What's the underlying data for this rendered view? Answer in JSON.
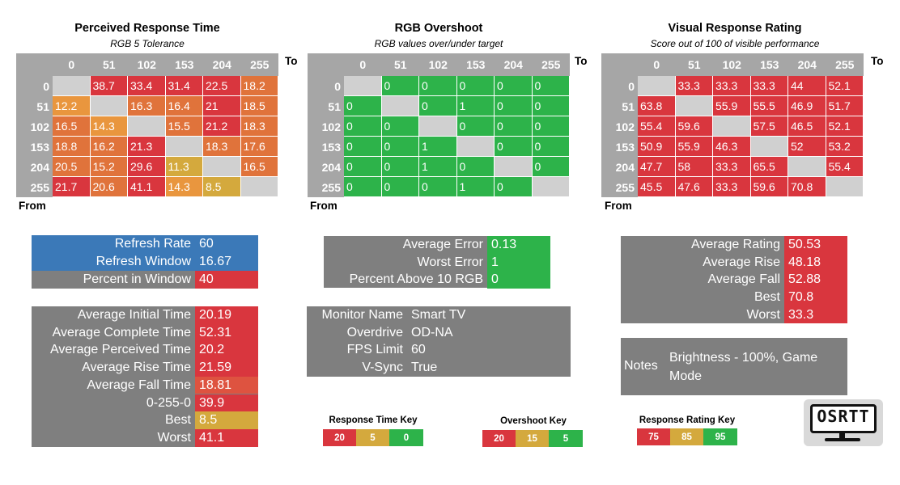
{
  "colors": {
    "red": "#d9363e",
    "orange": "#e0733b",
    "orange2": "#e9963e",
    "amber": "#d4a93d",
    "green": "#2db34a",
    "blue": "#3b79b8",
    "gray": "#7f7f7f",
    "header": "#a6a6a6",
    "diag": "#d0d0d0"
  },
  "chart_data": [
    {
      "type": "heatmap",
      "title": "Perceived Response Time",
      "subtitle": "RGB 5 Tolerance",
      "x_header": "To",
      "y_header": "From",
      "x": [
        "0",
        "51",
        "102",
        "153",
        "204",
        "255"
      ],
      "y": [
        "0",
        "51",
        "102",
        "153",
        "204",
        "255"
      ],
      "values": [
        [
          null,
          38.7,
          33.4,
          31.4,
          22.5,
          18.2
        ],
        [
          12.2,
          null,
          16.3,
          16.4,
          21,
          18.5
        ],
        [
          16.5,
          14.3,
          null,
          15.5,
          21.2,
          18.3
        ],
        [
          18.8,
          16.2,
          21.3,
          null,
          18.3,
          17.6
        ],
        [
          20.5,
          15.2,
          29.6,
          11.3,
          null,
          16.5
        ],
        [
          21.7,
          20.6,
          41.1,
          14.3,
          8.5,
          null
        ]
      ]
    },
    {
      "type": "heatmap",
      "title": "RGB Overshoot",
      "subtitle": "RGB values over/under target",
      "x_header": "To",
      "y_header": "From",
      "x": [
        "0",
        "51",
        "102",
        "153",
        "204",
        "255"
      ],
      "y": [
        "0",
        "51",
        "102",
        "153",
        "204",
        "255"
      ],
      "values": [
        [
          null,
          0,
          0,
          0,
          0,
          0
        ],
        [
          0,
          null,
          0,
          1,
          0,
          0
        ],
        [
          0,
          0,
          null,
          0,
          0,
          0
        ],
        [
          0,
          0,
          1,
          null,
          0,
          0
        ],
        [
          0,
          0,
          1,
          0,
          null,
          0
        ],
        [
          0,
          0,
          0,
          1,
          0,
          null
        ]
      ]
    },
    {
      "type": "heatmap",
      "title": "Visual Response Rating",
      "subtitle": "Score out of 100 of visible performance",
      "x_header": "To",
      "y_header": "From",
      "x": [
        "0",
        "51",
        "102",
        "153",
        "204",
        "255"
      ],
      "y": [
        "0",
        "51",
        "102",
        "153",
        "204",
        "255"
      ],
      "values": [
        [
          null,
          33.3,
          33.3,
          33.3,
          44,
          52.1
        ],
        [
          63.8,
          null,
          55.9,
          55.5,
          46.9,
          51.7
        ],
        [
          55.4,
          59.6,
          null,
          57.5,
          46.5,
          52.1
        ],
        [
          50.9,
          55.9,
          46.3,
          null,
          52,
          53.2
        ],
        [
          47.7,
          58,
          33.3,
          65.5,
          null,
          55.4
        ],
        [
          45.5,
          47.6,
          33.3,
          59.6,
          70.8,
          null
        ]
      ]
    }
  ],
  "refresh": {
    "rows": [
      {
        "label": "Refresh Rate",
        "value": "60"
      },
      {
        "label": "Refresh Window",
        "value": "16.67"
      },
      {
        "label": "Percent in Window",
        "value": "40"
      }
    ]
  },
  "timing": {
    "rows": [
      {
        "label": "Average Initial Time",
        "value": "20.19"
      },
      {
        "label": "Average Complete Time",
        "value": "52.31"
      },
      {
        "label": "Average Perceived Time",
        "value": "20.2"
      },
      {
        "label": "Average Rise Time",
        "value": "21.59"
      },
      {
        "label": "Average Fall Time",
        "value": "18.81"
      },
      {
        "label": "0-255-0",
        "value": "39.9"
      },
      {
        "label": "Best",
        "value": "8.5"
      },
      {
        "label": "Worst",
        "value": "41.1"
      }
    ]
  },
  "errors": {
    "rows": [
      {
        "label": "Average Error",
        "value": "0.13"
      },
      {
        "label": "Worst Error",
        "value": "1"
      },
      {
        "label": "Percent Above 10 RGB",
        "value": "0"
      }
    ]
  },
  "monitor": {
    "rows": [
      {
        "label": "Monitor Name",
        "value": "Smart TV"
      },
      {
        "label": "Overdrive",
        "value": "OD-NA"
      },
      {
        "label": "FPS Limit",
        "value": "60"
      },
      {
        "label": "V-Sync",
        "value": "True"
      }
    ]
  },
  "rating": {
    "rows": [
      {
        "label": "Average Rating",
        "value": "50.53"
      },
      {
        "label": "Average Rise",
        "value": "48.18"
      },
      {
        "label": "Average Fall",
        "value": "52.88"
      },
      {
        "label": "Best",
        "value": "70.8"
      },
      {
        "label": "Worst",
        "value": "33.3"
      }
    ]
  },
  "notes": {
    "label": "Notes",
    "text": "Brightness - 100%, Game Mode"
  },
  "keys": {
    "response": {
      "title": "Response Time Key",
      "items": [
        "20",
        "5",
        "0"
      ]
    },
    "overshoot": {
      "title": "Overshoot Key",
      "items": [
        "20",
        "15",
        "5"
      ]
    },
    "rating": {
      "title": "Response Rating Key",
      "items": [
        "75",
        "85",
        "95"
      ]
    }
  },
  "logo": {
    "text": "OSRTT"
  }
}
